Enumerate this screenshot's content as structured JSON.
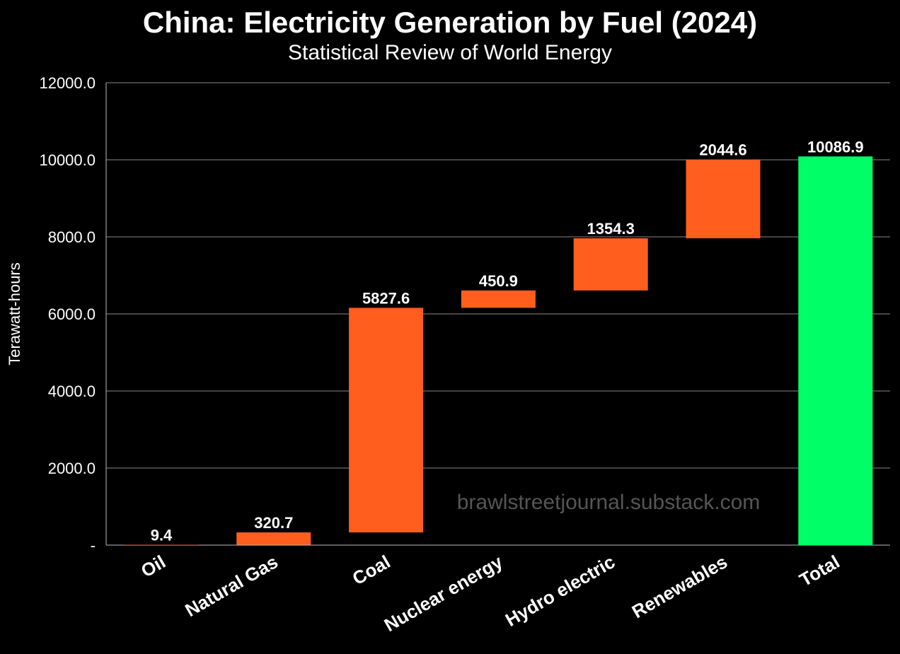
{
  "chart_data": {
    "type": "waterfall",
    "title": "China: Electricity Generation by Fuel (2024)",
    "subtitle": "Statistical Review of World Energy",
    "xlabel": "",
    "ylabel": "Terawatt-hours",
    "ylim": [
      0,
      12000
    ],
    "yticks": [
      0,
      2000,
      4000,
      6000,
      8000,
      10000,
      12000
    ],
    "ytick_labels": [
      "-",
      "2000.0",
      "4000.0",
      "6000.0",
      "8000.0",
      "10000.0",
      "12000.0"
    ],
    "grid": true,
    "categories": [
      "Oil",
      "Natural Gas",
      "Coal",
      "Nuclear energy",
      "Hydro electric",
      "Renewables",
      "Total"
    ],
    "values": [
      9.4,
      320.7,
      5827.6,
      450.9,
      1354.3,
      2044.6,
      10086.9
    ],
    "data_labels": [
      "9.4",
      "320.7",
      "5827.6",
      "450.9",
      "1354.3",
      "2044.6",
      "10086.9"
    ],
    "is_total": [
      false,
      false,
      false,
      false,
      false,
      false,
      true
    ],
    "colors": {
      "increase": "#ff5e1f",
      "total": "#00ff66",
      "grid": "#888888"
    },
    "watermark": "brawlstreetjournal.substack.com"
  }
}
